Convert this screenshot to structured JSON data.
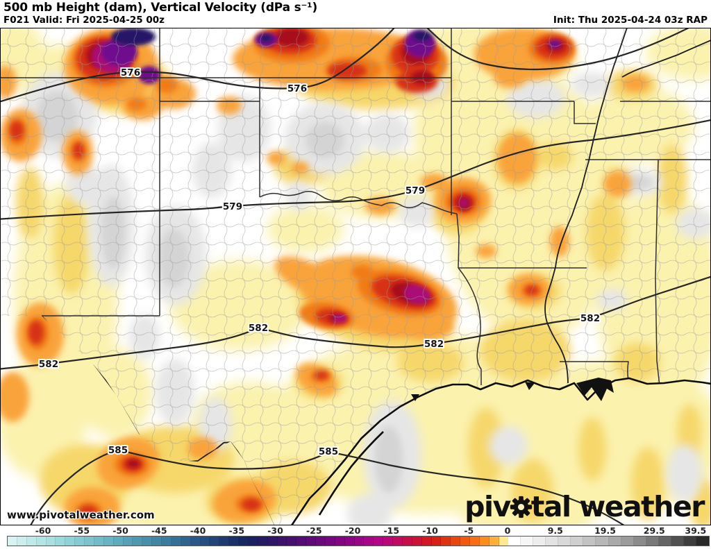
{
  "header": {
    "title": "500 mb Height (dam), Vertical Velocity (dPa s⁻¹)",
    "valid": "F021 Valid: Fri 2025-04-25 00z",
    "init": "Init: Thu 2025-04-24 03z RAP"
  },
  "watermark": "www.pivotalweather.com",
  "logo": {
    "left": "piv",
    "right": "tal weather"
  },
  "map": {
    "field": "500 mb geopotential height and vertical velocity",
    "contour_labels": [
      {
        "value": "576"
      },
      {
        "value": "576"
      },
      {
        "value": "579"
      },
      {
        "value": "579"
      },
      {
        "value": "582"
      },
      {
        "value": "582"
      },
      {
        "value": "582"
      },
      {
        "value": "582"
      },
      {
        "value": "585"
      },
      {
        "value": "585"
      }
    ],
    "height_contour_values_dam": [
      "576",
      "579",
      "582",
      "585"
    ]
  },
  "colors": {
    "strong_upward_navy": "#251468",
    "upward_purple": "#70118E",
    "upward_magenta": "#AA0C74",
    "upward_dark_red": "#A8101E",
    "upward_red": "#D63114",
    "upward_orange": "#F9A33A",
    "weak_upward_yellow": "#FBF2AE",
    "downward_gray": "#D4D4D4",
    "contour_line": "#262626"
  },
  "colorbar": {
    "units": "dPa s⁻¹",
    "ticks": [
      {
        "label": "-60",
        "pct": 5.15
      },
      {
        "label": "-55",
        "pct": 10.67
      },
      {
        "label": "-50",
        "pct": 16.19
      },
      {
        "label": "-45",
        "pct": 21.71
      },
      {
        "label": "-40",
        "pct": 27.23
      },
      {
        "label": "-35",
        "pct": 32.75
      },
      {
        "label": "-30",
        "pct": 38.27
      },
      {
        "label": "-25",
        "pct": 43.79
      },
      {
        "label": "-20",
        "pct": 49.31
      },
      {
        "label": "-15",
        "pct": 54.83
      },
      {
        "label": "-10",
        "pct": 60.35
      },
      {
        "label": "-5",
        "pct": 65.87
      },
      {
        "label": "0",
        "pct": 71.39
      },
      {
        "label": "9.5",
        "pct": 78.2
      },
      {
        "label": "19.5",
        "pct": 85.3
      },
      {
        "label": "29.5",
        "pct": 92.3
      },
      {
        "label": "39.5",
        "pct": 98.2
      }
    ],
    "cells_negative": [
      "#D8F4F2",
      "#CCEFEE",
      "#C0EAEA",
      "#B4E5E6",
      "#A8DFE2",
      "#9CD9DD",
      "#90D2D8",
      "#86CBD3",
      "#7CC3CE",
      "#72BBC9",
      "#68B3C4",
      "#5EAABE",
      "#56A1B8",
      "#4E98B2",
      "#488FAC",
      "#4286A6",
      "#3C7CA0",
      "#366F97",
      "#30648F",
      "#2B5987",
      "#264E7F",
      "#224476",
      "#1E3A6E",
      "#1A3166",
      "#17285E",
      "#1B2160",
      "#251B64",
      "#301668",
      "#3B126C",
      "#471070",
      "#530D74",
      "#5F0A78",
      "#6B087C",
      "#770680",
      "#830583",
      "#8F0486",
      "#9B0489",
      "#A7058A",
      "#B30687",
      "#BB0877",
      "#C10B63",
      "#C70E4D",
      "#CD1238",
      "#D31724",
      "#D92015",
      "#E13210",
      "#E9460E",
      "#F15A0D",
      "#F96E12",
      "#FC8C1C",
      "#FFAE38",
      "#FFE98F"
    ],
    "cells_positive": [
      "#FFFFFF",
      "#F6F6F6",
      "#EDEDED",
      "#E3E3E3",
      "#D9D9D9",
      "#CFCFCF",
      "#C3C3C3",
      "#B7B7B7",
      "#A9A9A9",
      "#9B9B9B",
      "#8B8B8B",
      "#797979",
      "#656565",
      "#515151",
      "#3D3D3D",
      "#292929"
    ]
  }
}
